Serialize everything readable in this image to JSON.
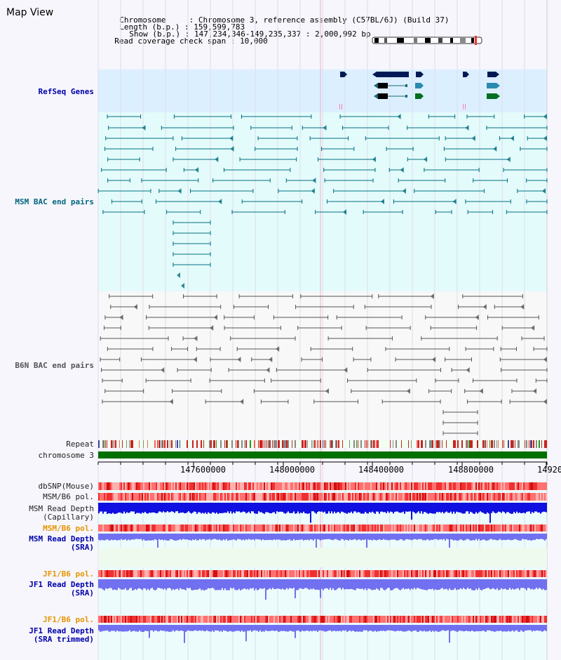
{
  "page": {
    "title": "Map View"
  },
  "info": {
    "chromosome_key": "Chromosome     :",
    "chromosome_val": "Chromosome 3, reference assembly (C57BL/6J) (Build 37)",
    "length_key": "Length (b.p.) :",
    "length_val": "159,599,783",
    "show_key": "Show (b.p.) :",
    "show_val": "147,234,346-149,235,337 : 2,000,992 bp",
    "coverage_key": "Read coverage check span :",
    "coverage_val": "10,000"
  },
  "tracks": {
    "refseq": "RefSeq Genes",
    "msm_bac": "MSM BAC end pairs",
    "b6n_bac": "B6N BAC end pairs",
    "repeat": "Repeat",
    "chromosome": "chromosome 3",
    "dbsnp": "dbSNP(Mouse)",
    "msm_b6_pol_1": "MSM/B6 pol.",
    "msm_read_depth_cap_1": "MSM Read Depth",
    "msm_read_depth_cap_2": "(Capillary)",
    "msm_b6_pol_2": "MSM/B6 pol.",
    "msm_read_depth_sra_1": "MSM Read Depth",
    "msm_read_depth_sra_2": "(SRA)",
    "jf1_b6_pol_1": "JF1/B6 pol.",
    "jf1_read_depth_sra_1": "JF1 Read Depth",
    "jf1_read_depth_sra_2": "(SRA)",
    "jf1_b6_pol_2": "JF1/B6 pol.",
    "jf1_read_depth_trim_1": "JF1 Read Depth",
    "jf1_read_depth_trim_2": "(SRA trimmed)"
  },
  "axis": {
    "ticks": [
      "147600000",
      "148000000",
      "148400000",
      "148800000",
      "14920"
    ]
  },
  "colors": {
    "refseq_bg": "#dcefff",
    "msm_bg": "#e4fbfb",
    "b6n_bg": "#f8f8f8",
    "chrom_bar": "#007000",
    "teal": "#006f80",
    "gray": "#555555",
    "depth_blue": "#1010e0",
    "depth_light": "#7070f0",
    "pol_red": "#f04040"
  }
}
